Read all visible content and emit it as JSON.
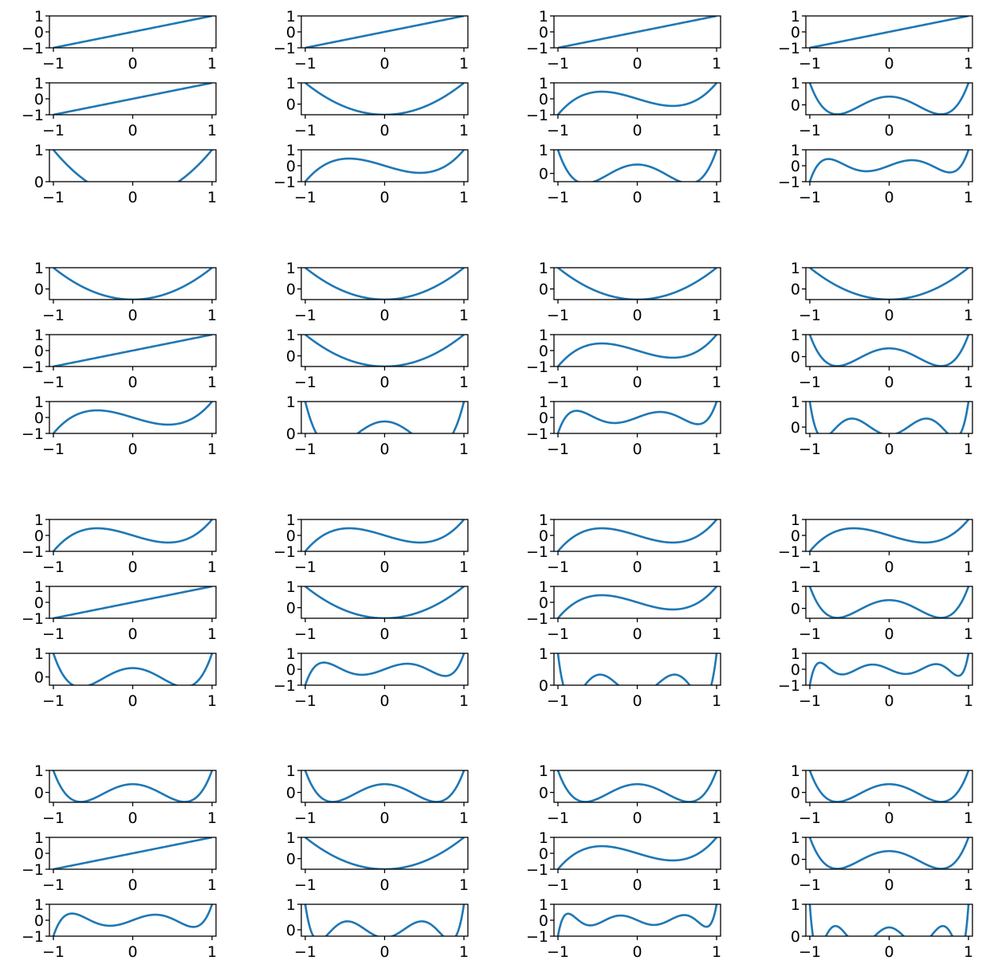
{
  "figure": {
    "line_color": "#1f77b4",
    "axis_color": "#000000",
    "background": "#ffffff"
  },
  "chart_data": {
    "type": "line",
    "layout": "4 groups (rows) x 4 columns, each cell holds 3 stacked panels",
    "x_ticks": [
      "−1",
      "0",
      "1"
    ],
    "xlim": [
      -1.05,
      1.05
    ],
    "grid": false,
    "legend": "none",
    "function_family": "polynomial P(n, x); panel plots P(n, x) for x in [-1, 1]",
    "panels": [
      {
        "group": 0,
        "col": 0,
        "row": 0,
        "n": 1,
        "ylim": [
          -1,
          1
        ],
        "y_ticks": [
          "1",
          "0",
          "−1"
        ]
      },
      {
        "group": 0,
        "col": 0,
        "row": 1,
        "n": 1,
        "ylim": [
          -1,
          1
        ],
        "y_ticks": [
          "1",
          "0",
          "−1"
        ]
      },
      {
        "group": 0,
        "col": 0,
        "row": 2,
        "n": 2,
        "ylim": [
          0,
          1
        ],
        "y_ticks": [
          "1",
          "0"
        ]
      },
      {
        "group": 0,
        "col": 1,
        "row": 0,
        "n": 1,
        "ylim": [
          -1,
          1
        ],
        "y_ticks": [
          "1",
          "0",
          "−1"
        ]
      },
      {
        "group": 0,
        "col": 1,
        "row": 1,
        "n": 2,
        "ylim": [
          -0.5,
          1
        ],
        "y_ticks": [
          "1",
          "0"
        ]
      },
      {
        "group": 0,
        "col": 1,
        "row": 2,
        "n": 3,
        "ylim": [
          -1,
          1
        ],
        "y_ticks": [
          "1",
          "0",
          "−1"
        ]
      },
      {
        "group": 0,
        "col": 2,
        "row": 0,
        "n": 1,
        "ylim": [
          -1,
          1
        ],
        "y_ticks": [
          "1",
          "0",
          "−1"
        ]
      },
      {
        "group": 0,
        "col": 2,
        "row": 1,
        "n": 3,
        "ylim": [
          -1,
          1
        ],
        "y_ticks": [
          "1",
          "0",
          "−1"
        ]
      },
      {
        "group": 0,
        "col": 2,
        "row": 2,
        "n": 4,
        "ylim": [
          -0.35,
          1
        ],
        "y_ticks": [
          "1",
          "0"
        ]
      },
      {
        "group": 0,
        "col": 3,
        "row": 0,
        "n": 1,
        "ylim": [
          -1,
          1
        ],
        "y_ticks": [
          "1",
          "0",
          "−1"
        ]
      },
      {
        "group": 0,
        "col": 3,
        "row": 1,
        "n": 4,
        "ylim": [
          -0.45,
          1
        ],
        "y_ticks": [
          "1",
          "0"
        ]
      },
      {
        "group": 0,
        "col": 3,
        "row": 2,
        "n": 5,
        "ylim": [
          -1,
          1
        ],
        "y_ticks": [
          "1",
          "0",
          "−1"
        ]
      },
      {
        "group": 1,
        "col": 0,
        "row": 0,
        "n": 2,
        "ylim": [
          -0.5,
          1
        ],
        "y_ticks": [
          "1",
          "0"
        ]
      },
      {
        "group": 1,
        "col": 0,
        "row": 1,
        "n": 1,
        "ylim": [
          -1,
          1
        ],
        "y_ticks": [
          "1",
          "0",
          "−1"
        ]
      },
      {
        "group": 1,
        "col": 0,
        "row": 2,
        "n": 3,
        "ylim": [
          -1,
          1
        ],
        "y_ticks": [
          "1",
          "0",
          "−1"
        ]
      },
      {
        "group": 1,
        "col": 1,
        "row": 0,
        "n": 2,
        "ylim": [
          -0.5,
          1
        ],
        "y_ticks": [
          "1",
          "0"
        ]
      },
      {
        "group": 1,
        "col": 1,
        "row": 1,
        "n": 2,
        "ylim": [
          -0.5,
          1
        ],
        "y_ticks": [
          "1",
          "0"
        ]
      },
      {
        "group": 1,
        "col": 1,
        "row": 2,
        "n": 4,
        "ylim": [
          0,
          1
        ],
        "y_ticks": [
          "1",
          "0"
        ]
      },
      {
        "group": 1,
        "col": 2,
        "row": 0,
        "n": 2,
        "ylim": [
          -0.5,
          1
        ],
        "y_ticks": [
          "1",
          "0"
        ]
      },
      {
        "group": 1,
        "col": 2,
        "row": 1,
        "n": 3,
        "ylim": [
          -1,
          1
        ],
        "y_ticks": [
          "1",
          "0",
          "−1"
        ]
      },
      {
        "group": 1,
        "col": 2,
        "row": 2,
        "n": 5,
        "ylim": [
          -1,
          1
        ],
        "y_ticks": [
          "1",
          "0",
          "−1"
        ]
      },
      {
        "group": 1,
        "col": 3,
        "row": 0,
        "n": 2,
        "ylim": [
          -0.5,
          1
        ],
        "y_ticks": [
          "1",
          "0"
        ]
      },
      {
        "group": 1,
        "col": 3,
        "row": 1,
        "n": 4,
        "ylim": [
          -0.45,
          1
        ],
        "y_ticks": [
          "1",
          "0"
        ]
      },
      {
        "group": 1,
        "col": 3,
        "row": 2,
        "n": 6,
        "ylim": [
          -0.25,
          1
        ],
        "y_ticks": [
          "1",
          "0"
        ]
      },
      {
        "group": 2,
        "col": 0,
        "row": 0,
        "n": 3,
        "ylim": [
          -1,
          1
        ],
        "y_ticks": [
          "1",
          "0",
          "−1"
        ]
      },
      {
        "group": 2,
        "col": 0,
        "row": 1,
        "n": 1,
        "ylim": [
          -1,
          1
        ],
        "y_ticks": [
          "1",
          "0",
          "−1"
        ]
      },
      {
        "group": 2,
        "col": 0,
        "row": 2,
        "n": 4,
        "ylim": [
          -0.35,
          1
        ],
        "y_ticks": [
          "1",
          "0"
        ]
      },
      {
        "group": 2,
        "col": 1,
        "row": 0,
        "n": 3,
        "ylim": [
          -1,
          1
        ],
        "y_ticks": [
          "1",
          "0",
          "−1"
        ]
      },
      {
        "group": 2,
        "col": 1,
        "row": 1,
        "n": 2,
        "ylim": [
          -0.5,
          1
        ],
        "y_ticks": [
          "1",
          "0"
        ]
      },
      {
        "group": 2,
        "col": 1,
        "row": 2,
        "n": 5,
        "ylim": [
          -1,
          1
        ],
        "y_ticks": [
          "1",
          "0",
          "−1"
        ]
      },
      {
        "group": 2,
        "col": 2,
        "row": 0,
        "n": 3,
        "ylim": [
          -1,
          1
        ],
        "y_ticks": [
          "1",
          "0",
          "−1"
        ]
      },
      {
        "group": 2,
        "col": 2,
        "row": 1,
        "n": 3,
        "ylim": [
          -1,
          1
        ],
        "y_ticks": [
          "1",
          "0",
          "−1"
        ]
      },
      {
        "group": 2,
        "col": 2,
        "row": 2,
        "n": 6,
        "ylim": [
          0,
          1
        ],
        "y_ticks": [
          "1",
          "0"
        ]
      },
      {
        "group": 2,
        "col": 3,
        "row": 0,
        "n": 3,
        "ylim": [
          -1,
          1
        ],
        "y_ticks": [
          "1",
          "0",
          "−1"
        ]
      },
      {
        "group": 2,
        "col": 3,
        "row": 1,
        "n": 4,
        "ylim": [
          -0.45,
          1
        ],
        "y_ticks": [
          "1",
          "0"
        ]
      },
      {
        "group": 2,
        "col": 3,
        "row": 2,
        "n": 7,
        "ylim": [
          -1,
          1
        ],
        "y_ticks": [
          "1",
          "0",
          "−1"
        ]
      },
      {
        "group": 3,
        "col": 0,
        "row": 0,
        "n": 4,
        "ylim": [
          -0.45,
          1
        ],
        "y_ticks": [
          "1",
          "0"
        ]
      },
      {
        "group": 3,
        "col": 0,
        "row": 1,
        "n": 1,
        "ylim": [
          -1,
          1
        ],
        "y_ticks": [
          "1",
          "0",
          "−1"
        ]
      },
      {
        "group": 3,
        "col": 0,
        "row": 2,
        "n": 5,
        "ylim": [
          -1,
          1
        ],
        "y_ticks": [
          "1",
          "0",
          "−1"
        ]
      },
      {
        "group": 3,
        "col": 1,
        "row": 0,
        "n": 4,
        "ylim": [
          -0.45,
          1
        ],
        "y_ticks": [
          "1",
          "0"
        ]
      },
      {
        "group": 3,
        "col": 1,
        "row": 1,
        "n": 2,
        "ylim": [
          -0.5,
          1
        ],
        "y_ticks": [
          "1",
          "0"
        ]
      },
      {
        "group": 3,
        "col": 1,
        "row": 2,
        "n": 6,
        "ylim": [
          -0.25,
          1
        ],
        "y_ticks": [
          "1",
          "0"
        ]
      },
      {
        "group": 3,
        "col": 2,
        "row": 0,
        "n": 4,
        "ylim": [
          -0.45,
          1
        ],
        "y_ticks": [
          "1",
          "0"
        ]
      },
      {
        "group": 3,
        "col": 2,
        "row": 1,
        "n": 3,
        "ylim": [
          -1,
          1
        ],
        "y_ticks": [
          "1",
          "0",
          "−1"
        ]
      },
      {
        "group": 3,
        "col": 2,
        "row": 2,
        "n": 7,
        "ylim": [
          -1,
          1
        ],
        "y_ticks": [
          "1",
          "0",
          "−1"
        ]
      },
      {
        "group": 3,
        "col": 3,
        "row": 0,
        "n": 4,
        "ylim": [
          -0.45,
          1
        ],
        "y_ticks": [
          "1",
          "0"
        ]
      },
      {
        "group": 3,
        "col": 3,
        "row": 1,
        "n": 4,
        "ylim": [
          -0.45,
          1
        ],
        "y_ticks": [
          "1",
          "0"
        ]
      },
      {
        "group": 3,
        "col": 3,
        "row": 2,
        "n": 8,
        "ylim": [
          0,
          1
        ],
        "y_ticks": [
          "1",
          "0"
        ]
      }
    ]
  }
}
